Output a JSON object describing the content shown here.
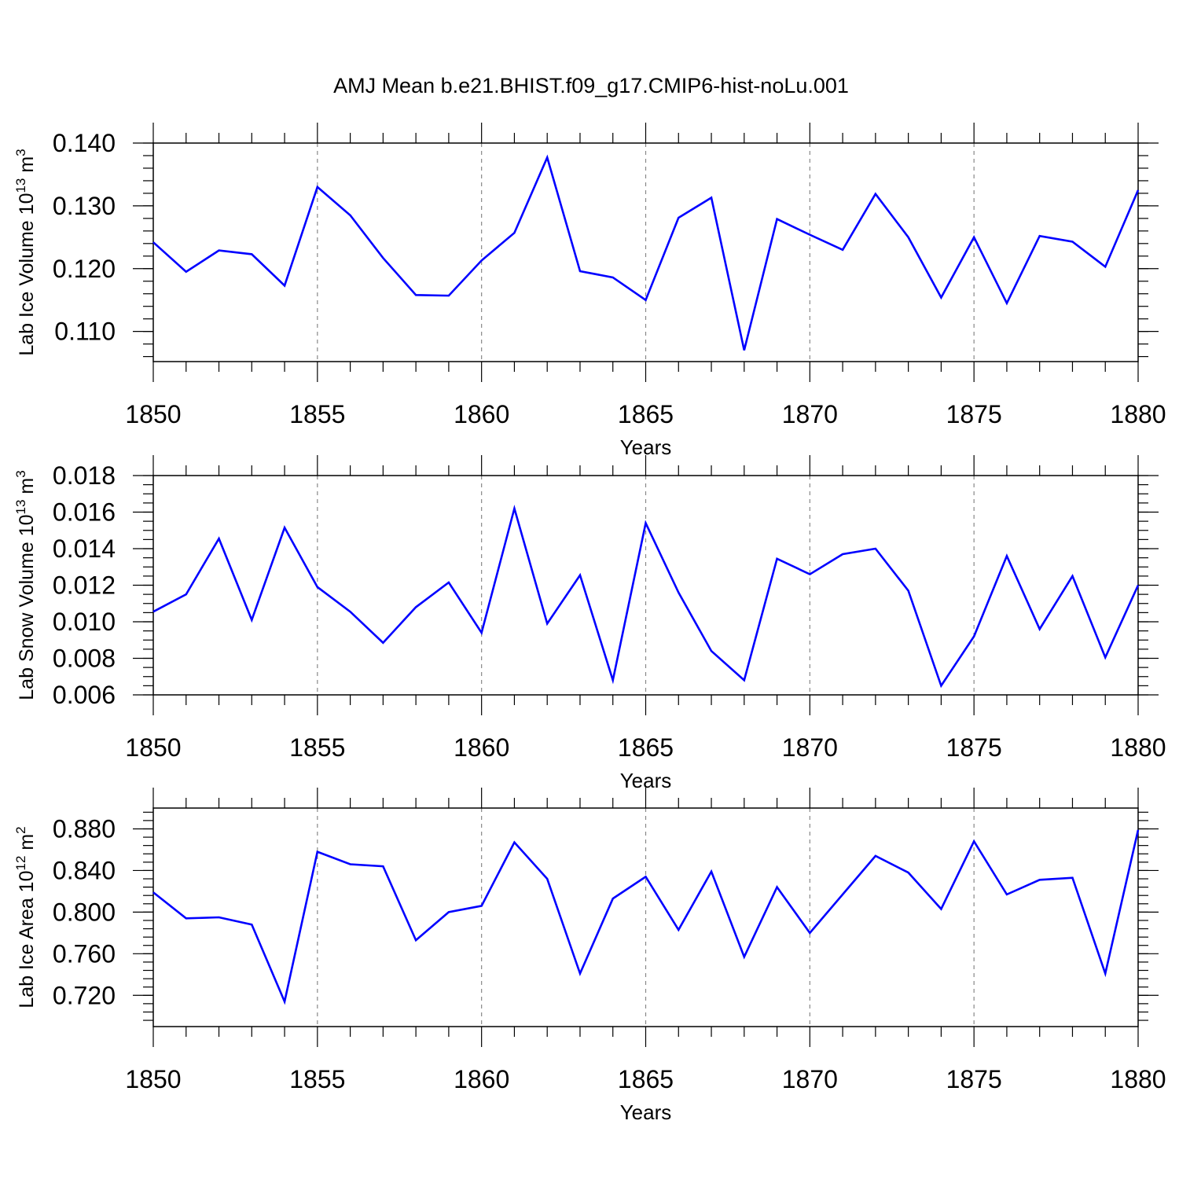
{
  "title": "AMJ Mean b.e21.BHIST.f09_g17.CMIP6-hist-noLu.001",
  "colors": {
    "line": "#0000ff",
    "axis": "#000000",
    "grid": "#888888"
  },
  "chart_data": [
    {
      "type": "line",
      "ylabel": {
        "prefix": "Lab Ice Volume 10",
        "exp1": "13",
        "unit": " m",
        "exp2": "3"
      },
      "xlabel": "Years",
      "xlim": [
        1850,
        1880
      ],
      "ylim": [
        0.1052,
        0.14
      ],
      "xticks": [
        1850,
        1855,
        1860,
        1865,
        1870,
        1875,
        1880
      ],
      "xtick_labels": [
        "1850",
        "1855",
        "1860",
        "1865",
        "1870",
        "1875",
        "1880"
      ],
      "yticks": [
        0.11,
        0.12,
        0.13,
        0.14
      ],
      "ytick_labels": [
        "0.110",
        "0.120",
        "0.130",
        "0.140"
      ],
      "ygrid_minor_step": 0.002,
      "x": [
        1850,
        1851,
        1852,
        1853,
        1854,
        1855,
        1856,
        1857,
        1858,
        1859,
        1860,
        1861,
        1862,
        1863,
        1864,
        1865,
        1866,
        1867,
        1868,
        1869,
        1870,
        1871,
        1872,
        1873,
        1874,
        1875,
        1876,
        1877,
        1878,
        1879,
        1880
      ],
      "values": [
        0.1242,
        0.1195,
        0.1229,
        0.1223,
        0.1173,
        0.133,
        0.1285,
        0.1217,
        0.1158,
        0.1157,
        0.1213,
        0.1257,
        0.1377,
        0.1196,
        0.1186,
        0.115,
        0.1281,
        0.1313,
        0.107,
        0.1279,
        0.1254,
        0.123,
        0.1319,
        0.125,
        0.1154,
        0.125,
        0.1145,
        0.1252,
        0.1243,
        0.1203,
        0.1325
      ]
    },
    {
      "type": "line",
      "ylabel": {
        "prefix": "Lab Snow Volume 10",
        "exp1": "13",
        "unit": " m",
        "exp2": "3"
      },
      "xlabel": "Years",
      "xlim": [
        1850,
        1880
      ],
      "ylim": [
        0.006,
        0.018
      ],
      "xticks": [
        1850,
        1855,
        1860,
        1865,
        1870,
        1875,
        1880
      ],
      "xtick_labels": [
        "1850",
        "1855",
        "1860",
        "1865",
        "1870",
        "1875",
        "1880"
      ],
      "yticks": [
        0.006,
        0.008,
        0.01,
        0.012,
        0.014,
        0.016,
        0.018
      ],
      "ytick_labels": [
        "0.006",
        "0.008",
        "0.010",
        "0.012",
        "0.014",
        "0.016",
        "0.018"
      ],
      "ygrid_minor_step": 0.0005,
      "x": [
        1850,
        1851,
        1852,
        1853,
        1854,
        1855,
        1856,
        1857,
        1858,
        1859,
        1860,
        1861,
        1862,
        1863,
        1864,
        1865,
        1866,
        1867,
        1868,
        1869,
        1870,
        1871,
        1872,
        1873,
        1874,
        1875,
        1876,
        1877,
        1878,
        1879,
        1880
      ],
      "values": [
        0.01055,
        0.0115,
        0.01455,
        0.0101,
        0.01515,
        0.0119,
        0.01055,
        0.00885,
        0.0108,
        0.01215,
        0.0094,
        0.0162,
        0.0099,
        0.01255,
        0.0068,
        0.0154,
        0.0116,
        0.0084,
        0.0068,
        0.01345,
        0.0126,
        0.0137,
        0.014,
        0.0117,
        0.0065,
        0.0092,
        0.0136,
        0.0096,
        0.0125,
        0.00805,
        0.012
      ]
    },
    {
      "type": "line",
      "ylabel": {
        "prefix": "Lab Ice Area 10",
        "exp1": "12",
        "unit": " m",
        "exp2": "2"
      },
      "xlabel": "Years",
      "xlim": [
        1850,
        1880
      ],
      "ylim": [
        0.69,
        0.9
      ],
      "xticks": [
        1850,
        1855,
        1860,
        1865,
        1870,
        1875,
        1880
      ],
      "xtick_labels": [
        "1850",
        "1855",
        "1860",
        "1865",
        "1870",
        "1875",
        "1880"
      ],
      "yticks": [
        0.72,
        0.76,
        0.8,
        0.84,
        0.88
      ],
      "ytick_labels": [
        "0.720",
        "0.760",
        "0.800",
        "0.840",
        "0.880"
      ],
      "ygrid_minor_step": 0.008,
      "x": [
        1850,
        1851,
        1852,
        1853,
        1854,
        1855,
        1856,
        1857,
        1858,
        1859,
        1860,
        1861,
        1862,
        1863,
        1864,
        1865,
        1866,
        1867,
        1868,
        1869,
        1870,
        1871,
        1872,
        1873,
        1874,
        1875,
        1876,
        1877,
        1878,
        1879,
        1880
      ],
      "values": [
        0.819,
        0.794,
        0.795,
        0.788,
        0.714,
        0.858,
        0.846,
        0.844,
        0.773,
        0.8,
        0.806,
        0.867,
        0.832,
        0.741,
        0.813,
        0.834,
        0.783,
        0.839,
        0.757,
        0.824,
        0.78,
        0.817,
        0.854,
        0.838,
        0.803,
        0.868,
        0.817,
        0.831,
        0.833,
        0.741,
        0.879
      ]
    }
  ]
}
